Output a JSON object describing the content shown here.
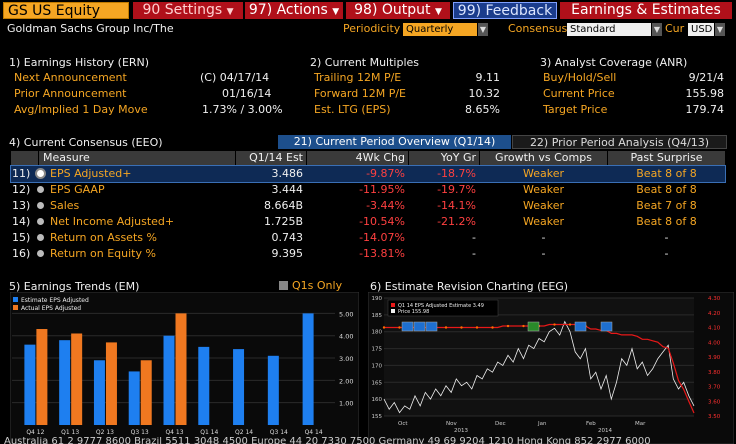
{
  "toolbar": {
    "security": "GS US Equity",
    "settings": "90 Settings",
    "actions": "97) Actions",
    "output": "98) Output",
    "feedback": "99) Feedback",
    "title": "Earnings & Estimates"
  },
  "header": {
    "company": "Goldman Sachs Group Inc/The",
    "periodicity_label": "Periodicity",
    "periodicity_value": "Quarterly",
    "consensus_label": "Consensus",
    "consensus_value": "Standard",
    "cur_label": "Cur",
    "cur_value": "USD"
  },
  "earnings_history": {
    "title": "1) Earnings History (ERN)",
    "rows": [
      {
        "label": "Next Announcement",
        "value": "(C)  04/17/14"
      },
      {
        "label": "Prior Announcement",
        "value": "01/16/14"
      },
      {
        "label": "Avg/Implied 1 Day Move",
        "value": "1.73% / 3.00%"
      }
    ]
  },
  "current_multiples": {
    "title": "2) Current Multiples",
    "rows": [
      {
        "label": "Trailing 12M P/E",
        "value": "9.11"
      },
      {
        "label": "Forward 12M P/E",
        "value": "10.32"
      },
      {
        "label": "Est. LTG (EPS)",
        "value": "8.65%"
      }
    ]
  },
  "analyst_coverage": {
    "title": "3) Analyst Coverage (ANR)",
    "rows": [
      {
        "label": "Buy/Hold/Sell",
        "value": "9/21/4"
      },
      {
        "label": "Current Price",
        "value": "155.98"
      },
      {
        "label": "Target Price",
        "value": "179.74"
      }
    ]
  },
  "consensus": {
    "title": "4) Current Consensus (EEO)",
    "tab_current": "21) Current Period Overview (Q1/14)",
    "tab_prior": "22) Prior Period Analysis (Q4/13)",
    "columns": [
      "Measure",
      "Q1/14 Est",
      "4Wk Chg",
      "YoY Gr",
      "Growth vs Comps",
      "Past Surprise"
    ],
    "rows": [
      {
        "num": "11)",
        "measure": "EPS Adjusted+",
        "est": "3.486",
        "chg": "-9.87%",
        "yoy": "-18.7%",
        "comps": "Weaker",
        "surprise": "Beat 8 of 8"
      },
      {
        "num": "12)",
        "measure": "EPS GAAP",
        "est": "3.444",
        "chg": "-11.95%",
        "yoy": "-19.7%",
        "comps": "Weaker",
        "surprise": "Beat 8 of 8"
      },
      {
        "num": "13)",
        "measure": "Sales",
        "est": "8.664B",
        "chg": "-3.44%",
        "yoy": "-14.1%",
        "comps": "Weaker",
        "surprise": "Beat 7 of 8"
      },
      {
        "num": "14)",
        "measure": "Net Income Adjusted+",
        "est": "1.725B",
        "chg": "-10.54%",
        "yoy": "-21.2%",
        "comps": "Weaker",
        "surprise": "Beat 8 of 8"
      },
      {
        "num": "15)",
        "measure": "Return on Assets %",
        "est": "0.743",
        "chg": "-14.07%",
        "yoy": "-",
        "comps": "-",
        "surprise": "-"
      },
      {
        "num": "16)",
        "measure": "Return on Equity %",
        "est": "9.395",
        "chg": "-13.81%",
        "yoy": "-",
        "comps": "-",
        "surprise": "-"
      }
    ]
  },
  "earnings_trends": {
    "title": "5) Earnings Trends (EM)",
    "q1s_label": "Q1s Only",
    "legend": [
      "Estimate EPS Adjusted",
      "Actual EPS Adjusted"
    ],
    "colors": {
      "estimate": "#1e7ff0",
      "actual": "#f07820"
    }
  },
  "revision": {
    "title": "6) Estimate Revision Charting (EEG)",
    "legend_est": "Q1 14 EPS Adjusted Estimate  3.49",
    "legend_price": "Price                               155.98"
  },
  "chart_data": [
    {
      "type": "bar",
      "categories": [
        "Q4 12",
        "Q1 13",
        "Q2 13",
        "Q3 13",
        "Q4 13",
        "Q1 14",
        "Q2 14",
        "Q3 14",
        "Q4 14"
      ],
      "series": [
        {
          "name": "Estimate EPS Adjusted",
          "values": [
            3.6,
            3.8,
            2.9,
            2.4,
            4.0,
            3.5,
            3.4,
            3.1,
            5.0
          ]
        },
        {
          "name": "Actual EPS Adjusted",
          "values": [
            4.3,
            4.1,
            3.7,
            2.9,
            5.0,
            null,
            null,
            null,
            null
          ]
        }
      ],
      "yticks": [
        "1.00",
        "2.00",
        "3.00",
        "4.00",
        "5.00"
      ],
      "ylim": [
        0,
        5.6
      ]
    },
    {
      "type": "line",
      "x_labels": [
        "Oct",
        "Nov",
        "Dec",
        "Jan",
        "Feb",
        "Mar"
      ],
      "x_years": [
        "2013",
        "2014"
      ],
      "left_ticks": [
        "155",
        "160",
        "165",
        "170",
        "175",
        "180",
        "185",
        "190"
      ],
      "right_ticks": [
        "3.50",
        "3.60",
        "3.70",
        "3.80",
        "3.90",
        "4.00",
        "4.10",
        "4.20",
        "4.30"
      ],
      "price": [
        160,
        157,
        159,
        156,
        158,
        157,
        161,
        158,
        162,
        160,
        163,
        161,
        164,
        162,
        166,
        164,
        165,
        163,
        167,
        166,
        169,
        168,
        171,
        170,
        173,
        171,
        175,
        172,
        176,
        175,
        178,
        177,
        180,
        181,
        179,
        183,
        180,
        174,
        172,
        175,
        166,
        168,
        163,
        167,
        160,
        165,
        172,
        170,
        175,
        169,
        171,
        167,
        169,
        172,
        174,
        176,
        166,
        163,
        165,
        161,
        158
      ],
      "estimate": [
        4.1,
        4.1,
        4.1,
        4.1,
        4.1,
        4.1,
        4.1,
        4.1,
        4.1,
        4.1,
        4.1,
        4.1,
        4.1,
        4.1,
        4.1,
        4.1,
        4.1,
        4.1,
        4.1,
        4.1,
        4.1,
        4.1,
        4.1,
        4.11,
        4.11,
        4.11,
        4.11,
        4.11,
        4.11,
        4.11,
        4.11,
        4.11,
        4.12,
        4.12,
        4.12,
        4.12,
        4.12,
        4.12,
        4.12,
        4.11,
        4.09,
        4.09,
        4.08,
        4.08,
        4.06,
        4.06,
        4.05,
        4.05,
        4.05,
        4.04,
        4.02,
        4.02,
        4.01,
        4.0,
        3.97,
        3.96,
        3.86,
        3.74,
        3.68,
        3.6,
        3.52
      ]
    }
  ],
  "footer": "Australia 61 2 9777 8600  Brazil 5511 3048 4500  Europe 44 20 7330 7500  Germany 49 69 9204 1210  Hong Kong 852 2977 6000"
}
